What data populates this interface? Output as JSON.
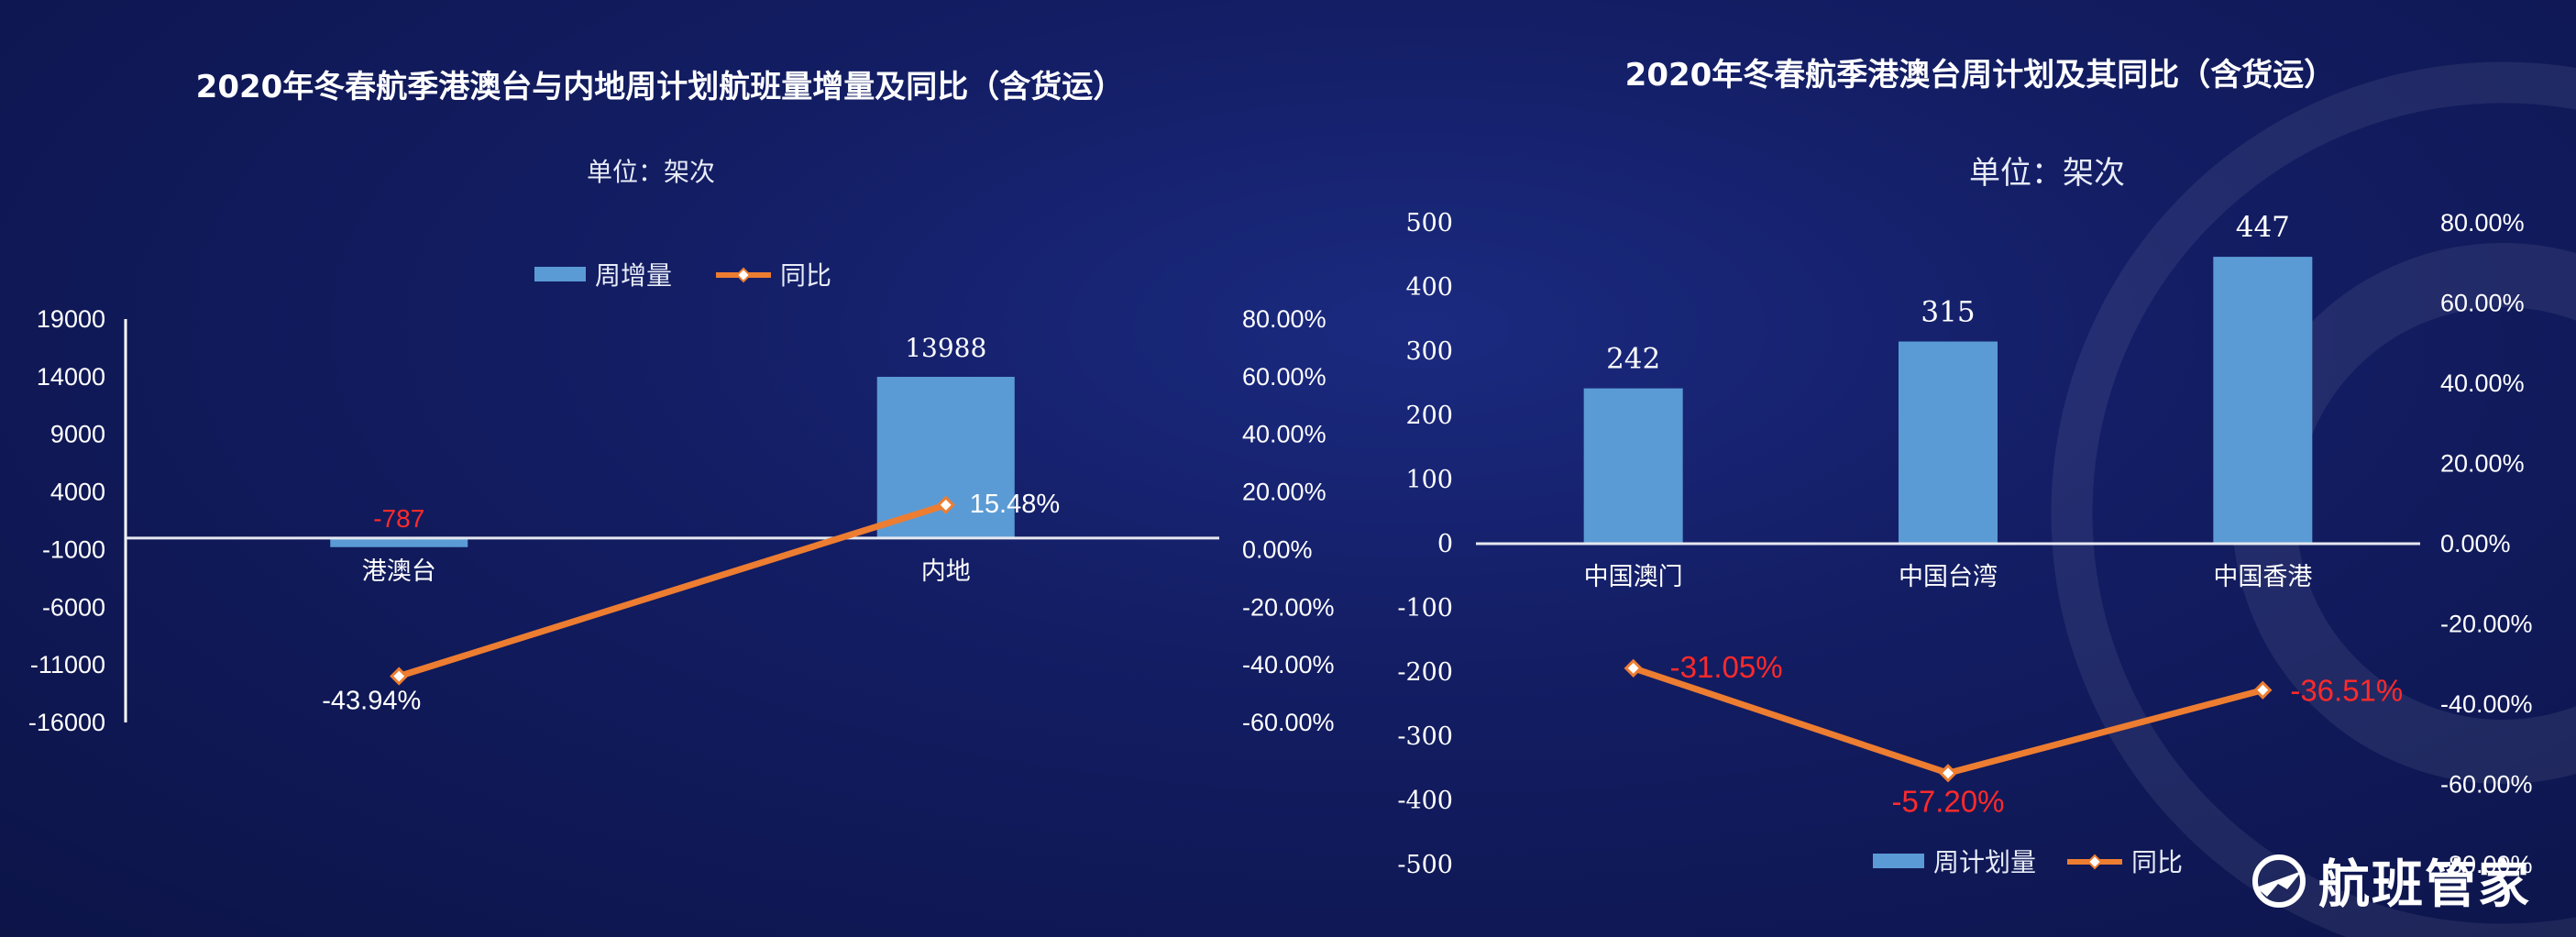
{
  "chart_data": [
    {
      "type": "bar",
      "title": "2020年冬春航季港澳台与内地周计划航班量增量及同比（含货运）",
      "subtitle": "单位：架次",
      "categories": [
        "港澳台",
        "内地"
      ],
      "series": [
        {
          "name": "周增量",
          "type": "bar",
          "axis": "left",
          "values": [
            -787,
            13988
          ],
          "labels": [
            "-787",
            "13988"
          ],
          "color": "#5b9bd5"
        },
        {
          "name": "同比",
          "type": "line",
          "axis": "right",
          "values": [
            -43.94,
            15.48
          ],
          "labels": [
            "-43.94%",
            "15.48%"
          ],
          "color": "#ed7d31"
        }
      ],
      "y_left": {
        "min": -16000,
        "max": 19000,
        "ticks": [
          "19000",
          "14000",
          "9000",
          "4000",
          "-1000",
          "-6000",
          "-11000",
          "-16000"
        ]
      },
      "y_right": {
        "min": -60,
        "max": 80,
        "ticks": [
          "80.00%",
          "60.00%",
          "40.00%",
          "20.00%",
          "0.00%",
          "-20.00%",
          "-40.00%",
          "-60.00%"
        ]
      },
      "legend": "top"
    },
    {
      "type": "bar",
      "title": "2020年冬春航季港澳台周计划及其同比（含货运）",
      "subtitle": "单位：架次",
      "categories": [
        "中国澳门",
        "中国台湾",
        "中国香港"
      ],
      "series": [
        {
          "name": "周计划量",
          "type": "bar",
          "axis": "left",
          "values": [
            242,
            315,
            447
          ],
          "labels": [
            "242",
            "315",
            "447"
          ],
          "color": "#5b9bd5"
        },
        {
          "name": "同比",
          "type": "line",
          "axis": "right",
          "values": [
            -31.05,
            -57.2,
            -36.51
          ],
          "labels": [
            "-31.05%",
            "-57.20%",
            "-36.51%"
          ],
          "color": "#ed7d31"
        }
      ],
      "y_left": {
        "min": -500,
        "max": 500,
        "ticks": [
          "500",
          "400",
          "300",
          "200",
          "100",
          "0",
          "-100",
          "-200",
          "-300",
          "-400",
          "-500"
        ]
      },
      "y_right": {
        "min": -80,
        "max": 80,
        "ticks": [
          "80.00%",
          "60.00%",
          "40.00%",
          "20.00%",
          "0.00%",
          "-20.00%",
          "-40.00%",
          "-60.00%",
          "-80.00%"
        ]
      },
      "legend": "bottom"
    }
  ],
  "logo": {
    "text": "航班管家",
    "icon": "plane-globe-icon"
  },
  "colors": {
    "bar": "#5b9bd5",
    "line": "#ed7d31",
    "negative_label": "#ff2a2a",
    "text": "#ffffff"
  }
}
